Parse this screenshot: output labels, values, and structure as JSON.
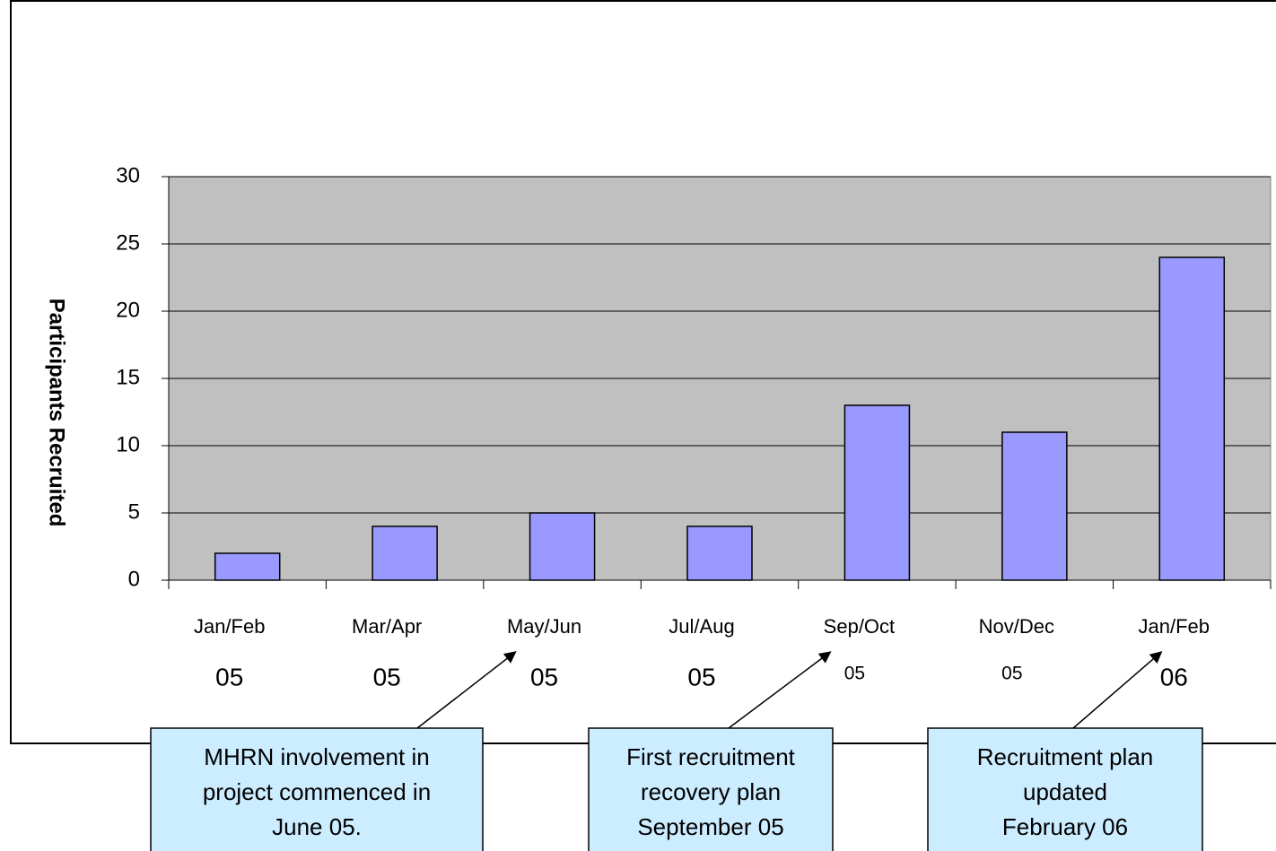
{
  "chart_data": {
    "type": "bar",
    "y_label": "Participants Recruited",
    "categories": [
      [
        "Jan/Feb",
        "05"
      ],
      [
        "Mar/Apr",
        "05"
      ],
      [
        "May/Jun",
        "05"
      ],
      [
        "Jul/Aug",
        "05"
      ],
      [
        "Sep/Oct",
        "05"
      ],
      [
        "Nov/Dec",
        "05"
      ],
      [
        "Jan/Feb",
        "06"
      ]
    ],
    "values": [
      2,
      4,
      5,
      4,
      13,
      11,
      24
    ],
    "color": "#9999ff",
    "plot_background": "#c0c0c0",
    "ylim": [
      0,
      30
    ],
    "yticks": [
      0,
      5,
      10,
      15,
      20,
      25,
      30
    ],
    "grid": true,
    "annotations": [
      {
        "lines": [
          "MHRN involvement in",
          "project commenced in",
          "June 05."
        ],
        "category": 2
      },
      {
        "lines": [
          "First recruitment",
          "recovery plan",
          "September 05"
        ],
        "category": 4
      },
      {
        "lines": [
          "Recruitment plan",
          "updated",
          "February 06"
        ],
        "category": 6
      }
    ]
  }
}
